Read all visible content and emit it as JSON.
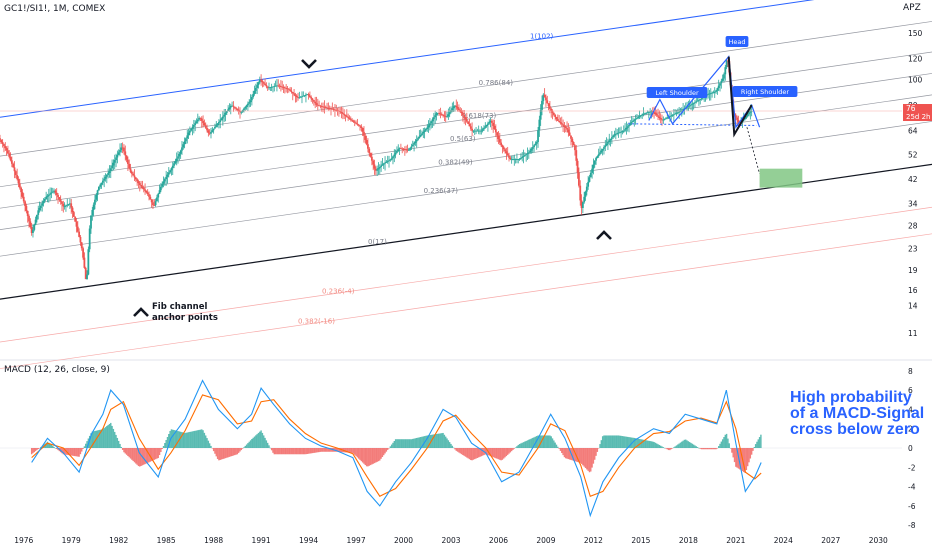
{
  "header": {
    "symbol": "GC1!/SI1!, 1M, COMEX",
    "scale_button": "APZ"
  },
  "macd": {
    "title": "MACD (12, 26, close, 9)"
  },
  "annotations": {
    "fib_note": [
      "Fib channel",
      "anchor points"
    ],
    "callout": [
      "High probability",
      "of a MACD-Signal",
      "cross below zero"
    ],
    "pattern": {
      "left_shoulder": "Left Shoulder",
      "head": "Head",
      "right_shoulder": "Right Shoulder"
    },
    "price_badge": [
      "76",
      "25d 2h"
    ]
  },
  "chart_data": [
    {
      "type": "line",
      "scale": "log",
      "title": "",
      "xlabel": "",
      "ylabel": "",
      "x_ticks": [
        "1976",
        "1979",
        "1982",
        "1985",
        "1988",
        "1991",
        "1994",
        "1997",
        "2000",
        "2003",
        "2006",
        "2009",
        "2012",
        "2015",
        "2018",
        "2021",
        "2024",
        "2027",
        "2030"
      ],
      "x_range": [
        1974.5,
        2031.5
      ],
      "y_ticks": [
        11,
        14,
        16,
        19,
        23,
        28,
        34,
        42,
        52,
        64,
        80,
        100,
        120,
        150
      ],
      "y_range": [
        9,
        180
      ],
      "last_price": 76,
      "price_series": [
        [
          1974.5,
          60
        ],
        [
          1975,
          54
        ],
        [
          1976,
          36
        ],
        [
          1976.6,
          26
        ],
        [
          1977,
          32
        ],
        [
          1977.5,
          36
        ],
        [
          1978,
          38
        ],
        [
          1978.6,
          33
        ],
        [
          1979,
          34
        ],
        [
          1979.4,
          28
        ],
        [
          1979.75,
          23
        ],
        [
          1980.05,
          16.5
        ],
        [
          1980.3,
          30
        ],
        [
          1980.8,
          39
        ],
        [
          1981.5,
          45
        ],
        [
          1982.3,
          56
        ],
        [
          1982.8,
          45
        ],
        [
          1983.4,
          40
        ],
        [
          1983.9,
          37
        ],
        [
          1984.3,
          33
        ],
        [
          1984.8,
          40
        ],
        [
          1985.4,
          46
        ],
        [
          1985.9,
          52
        ],
        [
          1986.5,
          63
        ],
        [
          1987.2,
          72
        ],
        [
          1987.8,
          62
        ],
        [
          1988.5,
          70
        ],
        [
          1989.2,
          80
        ],
        [
          1989.8,
          75
        ],
        [
          1990.4,
          83
        ],
        [
          1991.0,
          100
        ],
        [
          1991.5,
          93
        ],
        [
          1992.1,
          95
        ],
        [
          1992.8,
          92
        ],
        [
          1993.4,
          85
        ],
        [
          1994.0,
          88
        ],
        [
          1994.6,
          80
        ],
        [
          1995.3,
          78
        ],
        [
          1996.0,
          76
        ],
        [
          1996.8,
          70
        ],
        [
          1997.4,
          66
        ],
        [
          1997.9,
          53
        ],
        [
          1998.3,
          45
        ],
        [
          1998.8,
          48
        ],
        [
          1999.3,
          50
        ],
        [
          1999.8,
          55
        ],
        [
          2000.4,
          54
        ],
        [
          2001.0,
          60
        ],
        [
          2001.6,
          66
        ],
        [
          2002.2,
          75
        ],
        [
          2002.8,
          72
        ],
        [
          2003.3,
          80
        ],
        [
          2003.8,
          74
        ],
        [
          2004.4,
          64
        ],
        [
          2005.0,
          64
        ],
        [
          2005.6,
          70
        ],
        [
          2006.2,
          57
        ],
        [
          2006.8,
          50
        ],
        [
          2007.4,
          50
        ],
        [
          2008.0,
          53
        ],
        [
          2008.5,
          58
        ],
        [
          2008.9,
          88
        ],
        [
          2009.3,
          78
        ],
        [
          2009.8,
          70
        ],
        [
          2010.4,
          65
        ],
        [
          2010.9,
          55
        ],
        [
          2011.3,
          32
        ],
        [
          2011.7,
          40
        ],
        [
          2012.2,
          50
        ],
        [
          2012.8,
          56
        ],
        [
          2013.4,
          62
        ],
        [
          2014.0,
          64
        ],
        [
          2014.6,
          70
        ],
        [
          2015.2,
          74
        ],
        [
          2015.8,
          76
        ],
        [
          2016.4,
          70
        ],
        [
          2017.0,
          73
        ],
        [
          2017.6,
          76
        ],
        [
          2018.2,
          80
        ],
        [
          2018.8,
          84
        ],
        [
          2019.3,
          88
        ],
        [
          2019.8,
          90
        ],
        [
          2020.3,
          102
        ],
        [
          2020.55,
          122
        ],
        [
          2020.9,
          75
        ],
        [
          2021.3,
          68
        ],
        [
          2021.7,
          72
        ],
        [
          2022.0,
          76
        ]
      ],
      "fib_channel": {
        "levels": [
          {
            "label": "1(102)",
            "ratio": 1
          },
          {
            "label": "0.786(84)",
            "ratio": 0.786
          },
          {
            "label": "0.618(73)",
            "ratio": 0.618
          },
          {
            "label": "0.5(63)",
            "ratio": 0.5
          },
          {
            "label": "0.382(49)",
            "ratio": 0.382
          },
          {
            "label": "0.236(37)",
            "ratio": 0.236
          },
          {
            "label": "0(17)",
            "ratio": 0
          },
          {
            "label": "0.236(-4)",
            "ratio": -0.236
          },
          {
            "label": "0.382(-16)",
            "ratio": -0.382
          }
        ]
      },
      "projection_zone": {
        "x": [
          2022.5,
          2025.2
        ],
        "y": [
          39,
          46
        ]
      }
    },
    {
      "type": "line",
      "title": "",
      "x_ticks": [
        "1976",
        "1979",
        "1982",
        "1985",
        "1988",
        "1991",
        "1994",
        "1997",
        "2000",
        "2003",
        "2006",
        "2009",
        "2012",
        "2015",
        "2018",
        "2021",
        "2024",
        "2027",
        "2030"
      ],
      "y_ticks": [
        8,
        6,
        4,
        2,
        0,
        -2,
        -4,
        -6,
        -8
      ],
      "y_range": [
        -8.5,
        8.5
      ],
      "series": [
        {
          "role": "macd",
          "color": "#2196f3",
          "values": [
            [
              1976.5,
              -1.5
            ],
            [
              1977.5,
              1.0
            ],
            [
              1978.5,
              -0.5
            ],
            [
              1979.5,
              -2.5
            ],
            [
              1980.3,
              1.5
            ],
            [
              1981.0,
              3.5
            ],
            [
              1981.5,
              6.0
            ],
            [
              1982.3,
              4.5
            ],
            [
              1983.3,
              -0.5
            ],
            [
              1984.5,
              -3.0
            ],
            [
              1985.3,
              1.0
            ],
            [
              1986.2,
              3.0
            ],
            [
              1987.3,
              7.0
            ],
            [
              1988.3,
              4.0
            ],
            [
              1989.5,
              2.0
            ],
            [
              1990.4,
              3.5
            ],
            [
              1991.0,
              6.2
            ],
            [
              1991.8,
              4.5
            ],
            [
              1992.8,
              2.5
            ],
            [
              1993.8,
              1.0
            ],
            [
              1994.8,
              0.2
            ],
            [
              1995.8,
              -0.3
            ],
            [
              1996.8,
              -1.0
            ],
            [
              1997.7,
              -4.5
            ],
            [
              1998.5,
              -6.0
            ],
            [
              1999.5,
              -3.5
            ],
            [
              2000.5,
              -1.5
            ],
            [
              2001.5,
              1.0
            ],
            [
              2002.5,
              4.0
            ],
            [
              2003.3,
              3.2
            ],
            [
              2004.3,
              0.5
            ],
            [
              2005.2,
              -0.5
            ],
            [
              2006.2,
              -3.5
            ],
            [
              2007.3,
              -2.5
            ],
            [
              2008.5,
              1.0
            ],
            [
              2009.3,
              3.5
            ],
            [
              2010.2,
              1.0
            ],
            [
              2011.2,
              -3.0
            ],
            [
              2011.8,
              -7.0
            ],
            [
              2012.6,
              -3.5
            ],
            [
              2013.6,
              -1.0
            ],
            [
              2014.6,
              0.8
            ],
            [
              2015.8,
              2.0
            ],
            [
              2016.8,
              1.5
            ],
            [
              2017.8,
              3.5
            ],
            [
              2018.8,
              3.0
            ],
            [
              2019.8,
              2.5
            ],
            [
              2020.4,
              6.0
            ],
            [
              2021.0,
              0.5
            ],
            [
              2021.6,
              -4.5
            ],
            [
              2022.2,
              -3.0
            ],
            [
              2022.6,
              -1.5
            ]
          ]
        },
        {
          "role": "signal",
          "color": "#ff6d00",
          "values": [
            [
              1976.5,
              -1.0
            ],
            [
              1977.5,
              0.5
            ],
            [
              1978.5,
              0.0
            ],
            [
              1979.5,
              -1.8
            ],
            [
              1980.3,
              0.2
            ],
            [
              1981.0,
              2.0
            ],
            [
              1981.5,
              4.0
            ],
            [
              1982.3,
              4.8
            ],
            [
              1983.3,
              1.0
            ],
            [
              1984.5,
              -2.2
            ],
            [
              1985.3,
              -0.5
            ],
            [
              1986.2,
              1.8
            ],
            [
              1987.3,
              5.5
            ],
            [
              1988.3,
              5.0
            ],
            [
              1989.5,
              2.5
            ],
            [
              1990.4,
              2.8
            ],
            [
              1991.0,
              4.8
            ],
            [
              1991.8,
              5.0
            ],
            [
              1992.8,
              3.0
            ],
            [
              1993.8,
              1.5
            ],
            [
              1994.8,
              0.5
            ],
            [
              1995.8,
              0.0
            ],
            [
              1996.8,
              -0.6
            ],
            [
              1997.7,
              -3.0
            ],
            [
              1998.5,
              -5.0
            ],
            [
              1999.5,
              -4.2
            ],
            [
              2000.5,
              -2.2
            ],
            [
              2001.5,
              0.0
            ],
            [
              2002.5,
              2.8
            ],
            [
              2003.3,
              3.4
            ],
            [
              2004.3,
              1.5
            ],
            [
              2005.2,
              0.0
            ],
            [
              2006.2,
              -2.5
            ],
            [
              2007.3,
              -2.8
            ],
            [
              2008.5,
              0.0
            ],
            [
              2009.3,
              2.5
            ],
            [
              2010.2,
              1.8
            ],
            [
              2011.2,
              -1.8
            ],
            [
              2011.8,
              -5.0
            ],
            [
              2012.6,
              -4.5
            ],
            [
              2013.6,
              -2.0
            ],
            [
              2014.6,
              0.0
            ],
            [
              2015.8,
              1.5
            ],
            [
              2016.8,
              1.7
            ],
            [
              2017.8,
              2.8
            ],
            [
              2018.8,
              3.1
            ],
            [
              2019.8,
              2.6
            ],
            [
              2020.4,
              4.8
            ],
            [
              2021.0,
              2.0
            ],
            [
              2021.6,
              -2.5
            ],
            [
              2022.2,
              -3.2
            ],
            [
              2022.6,
              -2.6
            ]
          ]
        }
      ],
      "histogram_color_pos": "#26a69a",
      "histogram_color_neg": "#ef5350"
    }
  ]
}
